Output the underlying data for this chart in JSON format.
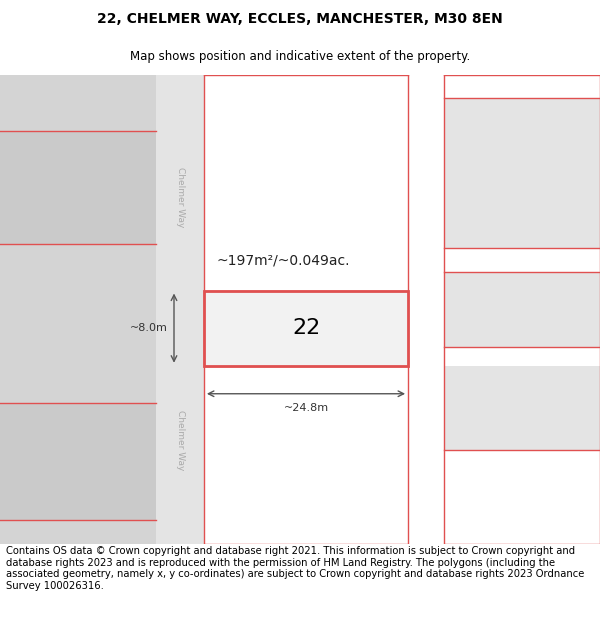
{
  "title": "22, CHELMER WAY, ECCLES, MANCHESTER, M30 8EN",
  "subtitle": "Map shows position and indicative extent of the property.",
  "footer": "Contains OS data © Crown copyright and database right 2021. This information is subject to Crown copyright and database rights 2023 and is reproduced with the permission of HM Land Registry. The polygons (including the associated geometry, namely x, y co-ordinates) are subject to Crown copyright and database rights 2023 Ordnance Survey 100026316.",
  "title_fontsize": 10,
  "subtitle_fontsize": 8.5,
  "footer_fontsize": 7.2,
  "red": "#e05050",
  "dark_gray": "#555555",
  "road_fill": "#e8e8e8",
  "left_block_fill": "#d8d8d8",
  "building_fill": "#e8e8e8",
  "map_bg": "#f8f8f8"
}
